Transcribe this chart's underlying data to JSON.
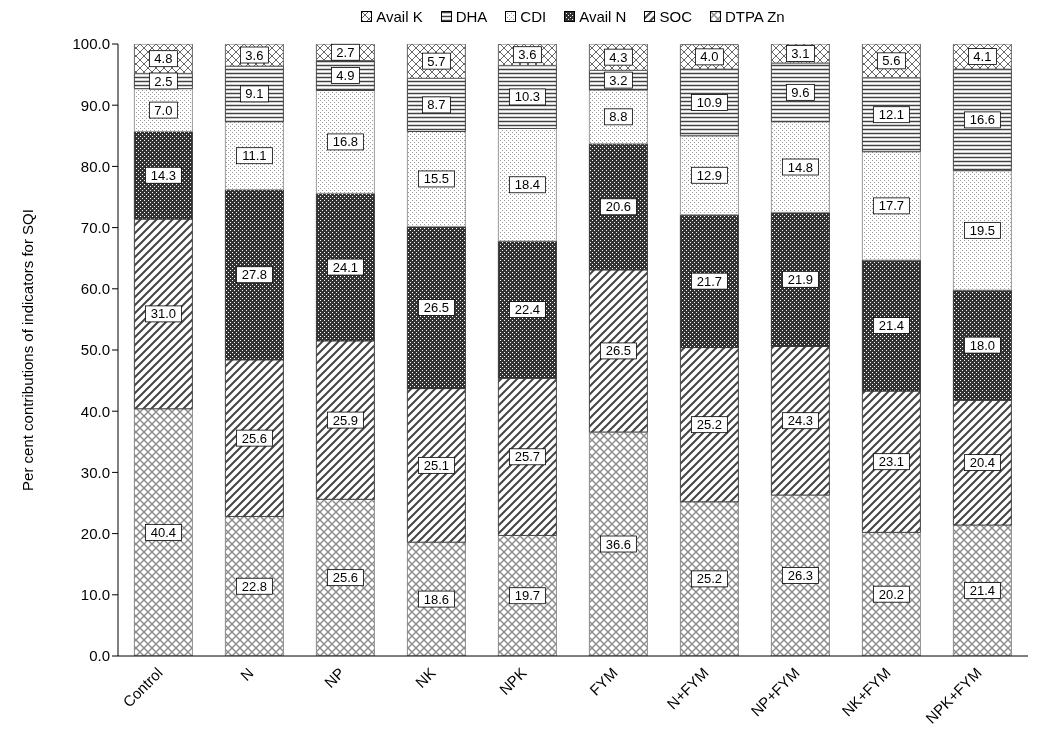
{
  "chart_data": {
    "type": "bar",
    "stacked": true,
    "ylabel": "Per cent contributions of indicators for SQI",
    "categories": [
      "Control",
      "N",
      "NP",
      "NK",
      "NPK",
      "FYM",
      "N+FYM",
      "NP+FYM",
      "NK+FYM",
      "NPK+FYM"
    ],
    "series": [
      {
        "name": "DTPA Zn",
        "color": "#8a8a8a",
        "values": [
          40.4,
          22.8,
          25.6,
          18.6,
          19.7,
          36.6,
          25.2,
          26.3,
          20.2,
          21.4
        ],
        "value_labels": [
          "40.4",
          "22.8",
          "25.6",
          "18.6",
          "19.7",
          "36.6",
          "25.2",
          "26.3",
          "20.2",
          "21.4"
        ]
      },
      {
        "name": "SOC",
        "color": "#444444",
        "values": [
          31.0,
          25.6,
          25.9,
          25.1,
          25.7,
          26.5,
          25.2,
          24.3,
          23.1,
          20.4
        ],
        "value_labels": [
          "31.0",
          "25.6",
          "25.9",
          "25.1",
          "25.7",
          "26.5",
          "25.2",
          "24.3",
          "23.1",
          "20.4"
        ]
      },
      {
        "name": "Avail N",
        "color": "#333333",
        "values": [
          14.3,
          27.8,
          24.1,
          26.5,
          22.4,
          20.6,
          21.7,
          21.9,
          21.4,
          18.0
        ],
        "value_labels": [
          "14.3",
          "27.8",
          "24.1",
          "26.5",
          "22.4",
          "20.6",
          "21.7",
          "21.9",
          "21.4",
          "18.0"
        ]
      },
      {
        "name": "CDI",
        "color": "#9a9a9a",
        "values": [
          7.0,
          11.1,
          16.8,
          15.5,
          18.4,
          8.8,
          12.9,
          14.8,
          17.7,
          19.5
        ],
        "value_labels": [
          "7.0",
          "11.1",
          "16.8",
          "15.5",
          "18.4",
          "8.8",
          "12.9",
          "14.8",
          "17.7",
          "19.5"
        ]
      },
      {
        "name": "DHA",
        "color": "#444444",
        "values": [
          2.5,
          9.1,
          4.9,
          8.7,
          10.3,
          3.2,
          10.9,
          9.6,
          12.1,
          16.6
        ],
        "value_labels": [
          "2.5",
          "9.1",
          "4.9",
          "8.7",
          "10.3",
          "3.2",
          "10.9",
          "9.6",
          "12.1",
          "16.6"
        ]
      },
      {
        "name": "Avail K",
        "color": "#666666",
        "values": [
          4.8,
          3.6,
          2.7,
          5.7,
          3.6,
          4.3,
          4.0,
          3.1,
          5.6,
          4.1
        ],
        "value_labels": [
          "4.8",
          "3.6",
          "2.7",
          "5.7",
          "3.6",
          "4.3",
          "4.0",
          "3.1",
          "5.6",
          "4.1"
        ]
      }
    ],
    "ylim": [
      0,
      100
    ],
    "yticks": [
      {
        "value": 0,
        "label": "0.0"
      },
      {
        "value": 10,
        "label": "10.0"
      },
      {
        "value": 20,
        "label": "20.0"
      },
      {
        "value": 30,
        "label": "30.0"
      },
      {
        "value": 40,
        "label": "40.0"
      },
      {
        "value": 50,
        "label": "50.0"
      },
      {
        "value": 60,
        "label": "60.0"
      },
      {
        "value": 70,
        "label": "70.0"
      },
      {
        "value": 80,
        "label": "80.0"
      },
      {
        "value": 90,
        "label": "90.0"
      },
      {
        "value": 100,
        "label": "100.0"
      }
    ],
    "legend": "top"
  }
}
